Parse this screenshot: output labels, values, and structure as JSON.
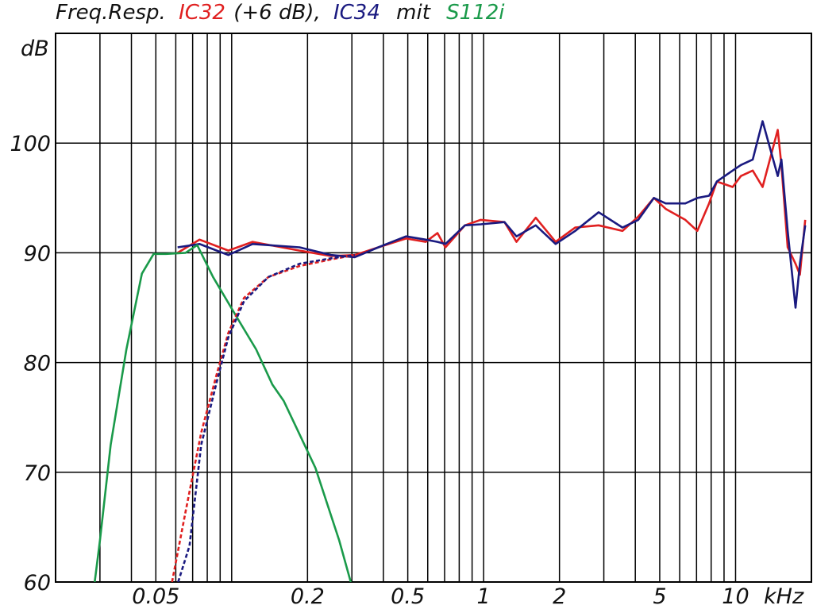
{
  "chart_data": {
    "type": "line",
    "title_parts": [
      "Freq.Resp.",
      "(+6 dB),",
      "mit"
    ],
    "ylabel": "dB",
    "xlabel": "kHz",
    "xscale": "log",
    "grid": true,
    "xlim": [
      0.02,
      20
    ],
    "ylim": [
      60,
      110
    ],
    "xticks": [
      0.05,
      0.2,
      0.5,
      1,
      2,
      5,
      10
    ],
    "xgrid": [
      0.03,
      0.04,
      0.05,
      0.06,
      0.07,
      0.08,
      0.09,
      0.1,
      0.2,
      0.3,
      0.4,
      0.5,
      0.6,
      0.7,
      0.8,
      0.9,
      1,
      2,
      3,
      4,
      5,
      6,
      7,
      8,
      9,
      10
    ],
    "yticks": [
      60,
      70,
      80,
      90,
      100
    ],
    "series": [
      {
        "name": "IC32",
        "color": "#e02020",
        "x": [
          0.061,
          0.0746,
          0.097,
          0.121,
          0.186,
          0.248,
          0.308,
          0.382,
          0.492,
          0.589,
          0.656,
          0.705,
          0.843,
          0.974,
          1.21,
          1.35,
          1.61,
          1.93,
          2.31,
          2.86,
          3.56,
          4.11,
          4.74,
          5.28,
          6.32,
          7.05,
          7.85,
          8.43,
          9.74,
          10.5,
          11.7,
          12.8,
          14.7,
          15.2,
          16.1,
          17.3,
          18.0,
          18.9
        ],
        "values": [
          90,
          91.2,
          90.2,
          91,
          90.2,
          89.7,
          89.8,
          90.5,
          91.3,
          91,
          91.8,
          90.5,
          92.5,
          93,
          92.8,
          91,
          93.2,
          91,
          92.3,
          92.5,
          92,
          93.3,
          95,
          94,
          93,
          92,
          94.5,
          96.5,
          96,
          97,
          97.5,
          96,
          101.2,
          98,
          90.5,
          89,
          88,
          93
        ]
      },
      {
        "name": "IC34",
        "color": "#1a1a80",
        "x": [
          0.061,
          0.0746,
          0.097,
          0.121,
          0.186,
          0.248,
          0.308,
          0.382,
          0.492,
          0.589,
          0.656,
          0.705,
          0.843,
          0.974,
          1.21,
          1.35,
          1.61,
          1.93,
          2.31,
          2.86,
          3.56,
          4.11,
          4.74,
          5.28,
          6.32,
          7.05,
          7.85,
          8.43,
          9.74,
          10.5,
          11.7,
          12.8,
          14.7,
          15.2,
          16.1,
          17.3,
          18.0,
          18.9
        ],
        "values": [
          90.5,
          90.8,
          89.8,
          90.8,
          90.5,
          89.8,
          89.6,
          90.5,
          91.5,
          91.2,
          91,
          90.8,
          92.5,
          92.6,
          92.8,
          91.5,
          92.5,
          90.8,
          92,
          93.7,
          92.3,
          93,
          95,
          94.5,
          94.5,
          95,
          95.2,
          96.5,
          97.5,
          98,
          98.5,
          102,
          97,
          98.5,
          92,
          85,
          89,
          92.5
        ]
      },
      {
        "name": "S112i",
        "color": "#1a9a4a",
        "x": [
          0.0286,
          0.03,
          0.0331,
          0.0382,
          0.044,
          0.049,
          0.0548,
          0.0656,
          0.073,
          0.0843,
          0.105,
          0.125,
          0.145,
          0.161,
          0.215,
          0.267,
          0.297
        ],
        "values": [
          60,
          63.8,
          72.5,
          81.2,
          88.1,
          89.9,
          89.9,
          90,
          90.7,
          87.8,
          84.1,
          81.2,
          78,
          76.5,
          70.4,
          63.8,
          60
        ]
      },
      {
        "color": "#e02020",
        "dashed": true,
        "x": [
          0.058,
          0.0656,
          0.0757,
          0.0874,
          0.097,
          0.112,
          0.14,
          0.186,
          0.248,
          0.308
        ],
        "values": [
          60,
          66.4,
          73.6,
          79,
          82.7,
          85.9,
          87.8,
          88.8,
          89.4,
          89.8
        ]
      },
      {
        "color": "#1a1a80",
        "dashed": true,
        "x": [
          0.0613,
          0.068,
          0.0757,
          0.0874,
          0.097,
          0.112,
          0.14,
          0.186,
          0.248,
          0.308
        ],
        "values": [
          60,
          63.3,
          72.5,
          78.3,
          82.3,
          85.6,
          87.8,
          89,
          89.5,
          89.8
        ]
      }
    ]
  }
}
